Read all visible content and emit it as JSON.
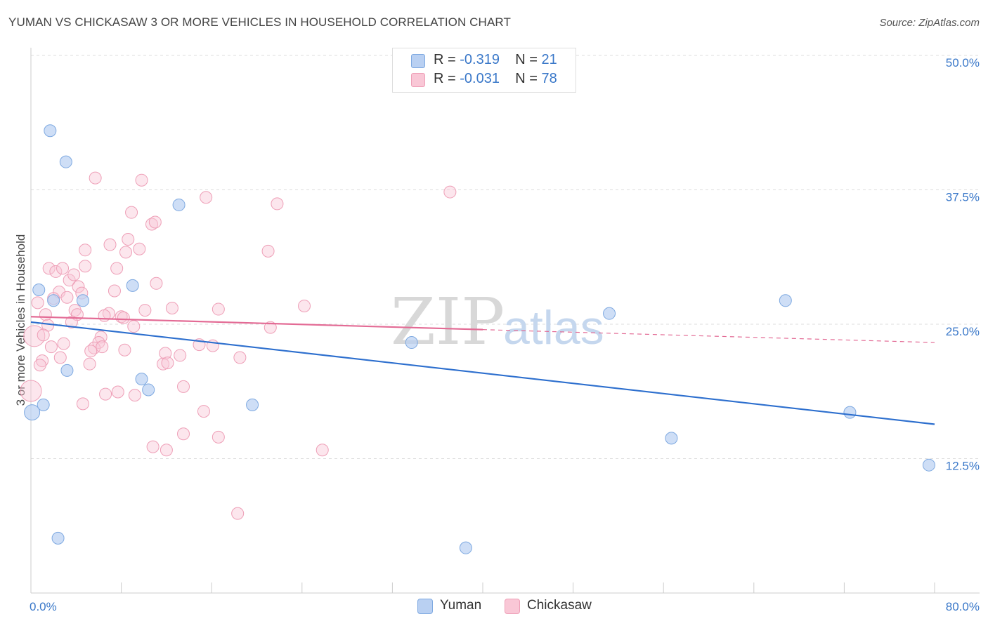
{
  "title": "YUMAN VS CHICKASAW 3 OR MORE VEHICLES IN HOUSEHOLD CORRELATION CHART",
  "source": "Source: ZipAtlas.com",
  "watermark": {
    "zip": "ZIP",
    "atlas": "atlas"
  },
  "legend": {
    "yuman": {
      "r_label": "R =",
      "r_value": "-0.319",
      "n_label": "N =",
      "n_value": "21"
    },
    "chickasaw": {
      "r_label": "R =",
      "r_value": "-0.031",
      "n_label": "N =",
      "n_value": "78"
    }
  },
  "colors": {
    "yuman_fill": "#b9d0f2",
    "yuman_stroke": "#7ea9e1",
    "yuman_line": "#2d6fce",
    "chickasaw_fill": "#f9c7d6",
    "chickasaw_stroke": "#ee9fb7",
    "chickasaw_line": "#e36b95",
    "axis_label": "#3a78c9",
    "grid": "#dddddd"
  },
  "chart_data": {
    "type": "scatter",
    "title": "YUMAN VS CHICKASAW 3 OR MORE VEHICLES IN HOUSEHOLD CORRELATION CHART",
    "xlabel": "",
    "ylabel": "3 or more Vehicles in Household",
    "xlim": [
      0,
      80
    ],
    "ylim": [
      0,
      50
    ],
    "x_tick_labels": [
      "0.0%",
      "80.0%"
    ],
    "y_ticks": [
      12.5,
      25.0,
      37.5,
      50.0
    ],
    "y_tick_labels": [
      "12.5%",
      "25.0%",
      "37.5%",
      "50.0%"
    ],
    "grid": true,
    "series": [
      {
        "name": "Yuman",
        "points": [
          {
            "x": 1.7,
            "y": 43.0
          },
          {
            "x": 3.1,
            "y": 40.1
          },
          {
            "x": 13.1,
            "y": 36.1
          },
          {
            "x": 0.7,
            "y": 28.2
          },
          {
            "x": 2.0,
            "y": 27.2
          },
          {
            "x": 4.6,
            "y": 27.2
          },
          {
            "x": 9.0,
            "y": 28.6
          },
          {
            "x": 3.2,
            "y": 20.7
          },
          {
            "x": 9.8,
            "y": 19.9
          },
          {
            "x": 10.4,
            "y": 18.9
          },
          {
            "x": 1.1,
            "y": 17.5
          },
          {
            "x": 0.1,
            "y": 16.8
          },
          {
            "x": 19.6,
            "y": 17.5
          },
          {
            "x": 33.7,
            "y": 23.3
          },
          {
            "x": 51.2,
            "y": 26.0
          },
          {
            "x": 66.8,
            "y": 27.2
          },
          {
            "x": 56.7,
            "y": 14.4
          },
          {
            "x": 72.5,
            "y": 16.8
          },
          {
            "x": 79.5,
            "y": 11.9
          },
          {
            "x": 2.4,
            "y": 5.1
          },
          {
            "x": 38.5,
            "y": 4.2
          }
        ],
        "trend": {
          "x": [
            0,
            80
          ],
          "y": [
            25.2,
            15.7
          ]
        }
      },
      {
        "name": "Chickasaw",
        "points": [
          {
            "x": 5.7,
            "y": 38.6
          },
          {
            "x": 9.8,
            "y": 38.4
          },
          {
            "x": 15.5,
            "y": 36.8
          },
          {
            "x": 21.8,
            "y": 36.2
          },
          {
            "x": 37.1,
            "y": 37.3
          },
          {
            "x": 8.9,
            "y": 35.4
          },
          {
            "x": 10.7,
            "y": 34.3
          },
          {
            "x": 11.0,
            "y": 34.5
          },
          {
            "x": 8.6,
            "y": 32.9
          },
          {
            "x": 7.0,
            "y": 32.4
          },
          {
            "x": 9.6,
            "y": 32.0
          },
          {
            "x": 8.4,
            "y": 31.7
          },
          {
            "x": 4.8,
            "y": 31.9
          },
          {
            "x": 21.0,
            "y": 31.8
          },
          {
            "x": 1.6,
            "y": 30.2
          },
          {
            "x": 2.2,
            "y": 29.9
          },
          {
            "x": 2.8,
            "y": 30.2
          },
          {
            "x": 4.8,
            "y": 30.4
          },
          {
            "x": 7.6,
            "y": 30.2
          },
          {
            "x": 3.4,
            "y": 29.1
          },
          {
            "x": 3.8,
            "y": 29.6
          },
          {
            "x": 11.1,
            "y": 28.8
          },
          {
            "x": 2.5,
            "y": 28.0
          },
          {
            "x": 4.2,
            "y": 28.5
          },
          {
            "x": 4.5,
            "y": 27.9
          },
          {
            "x": 7.4,
            "y": 28.1
          },
          {
            "x": 0.6,
            "y": 27.0
          },
          {
            "x": 2.0,
            "y": 27.4
          },
          {
            "x": 3.2,
            "y": 27.5
          },
          {
            "x": 3.9,
            "y": 26.3
          },
          {
            "x": 4.1,
            "y": 25.9
          },
          {
            "x": 6.9,
            "y": 26.0
          },
          {
            "x": 10.1,
            "y": 26.3
          },
          {
            "x": 12.5,
            "y": 26.5
          },
          {
            "x": 16.6,
            "y": 26.4
          },
          {
            "x": 24.2,
            "y": 26.7
          },
          {
            "x": 1.3,
            "y": 25.9
          },
          {
            "x": 6.5,
            "y": 25.8
          },
          {
            "x": 8.0,
            "y": 25.7
          },
          {
            "x": 8.2,
            "y": 25.6
          },
          {
            "x": 3.6,
            "y": 25.2
          },
          {
            "x": 1.5,
            "y": 24.9
          },
          {
            "x": 9.1,
            "y": 24.8
          },
          {
            "x": 21.2,
            "y": 24.7
          },
          {
            "x": 0.3,
            "y": 23.9
          },
          {
            "x": 1.1,
            "y": 24.0
          },
          {
            "x": 6.2,
            "y": 23.8
          },
          {
            "x": 6.0,
            "y": 23.3
          },
          {
            "x": 2.9,
            "y": 23.2
          },
          {
            "x": 1.8,
            "y": 22.9
          },
          {
            "x": 5.6,
            "y": 22.8
          },
          {
            "x": 6.3,
            "y": 22.9
          },
          {
            "x": 8.3,
            "y": 22.6
          },
          {
            "x": 14.9,
            "y": 23.1
          },
          {
            "x": 16.1,
            "y": 23.0
          },
          {
            "x": 5.3,
            "y": 22.5
          },
          {
            "x": 11.9,
            "y": 22.3
          },
          {
            "x": 13.2,
            "y": 22.1
          },
          {
            "x": 18.5,
            "y": 21.9
          },
          {
            "x": 2.6,
            "y": 21.9
          },
          {
            "x": 1.0,
            "y": 21.6
          },
          {
            "x": 0.8,
            "y": 21.2
          },
          {
            "x": 5.2,
            "y": 21.3
          },
          {
            "x": 11.7,
            "y": 21.3
          },
          {
            "x": 12.1,
            "y": 21.4
          },
          {
            "x": 0.0,
            "y": 18.8
          },
          {
            "x": 13.5,
            "y": 19.2
          },
          {
            "x": 6.6,
            "y": 18.5
          },
          {
            "x": 7.7,
            "y": 18.7
          },
          {
            "x": 9.2,
            "y": 18.4
          },
          {
            "x": 4.6,
            "y": 17.6
          },
          {
            "x": 15.3,
            "y": 16.9
          },
          {
            "x": 13.5,
            "y": 14.8
          },
          {
            "x": 16.6,
            "y": 14.5
          },
          {
            "x": 10.8,
            "y": 13.6
          },
          {
            "x": 12.0,
            "y": 13.3
          },
          {
            "x": 25.8,
            "y": 13.3
          },
          {
            "x": 18.3,
            "y": 7.4
          }
        ],
        "trend": {
          "x": [
            0,
            40
          ],
          "y": [
            25.7,
            24.5
          ]
        },
        "trend_extension": {
          "x": [
            40,
            80
          ],
          "y": [
            24.5,
            23.3
          ]
        }
      }
    ],
    "legend_entries": [
      "Yuman",
      "Chickasaw"
    ],
    "legend_position": "top-center"
  }
}
